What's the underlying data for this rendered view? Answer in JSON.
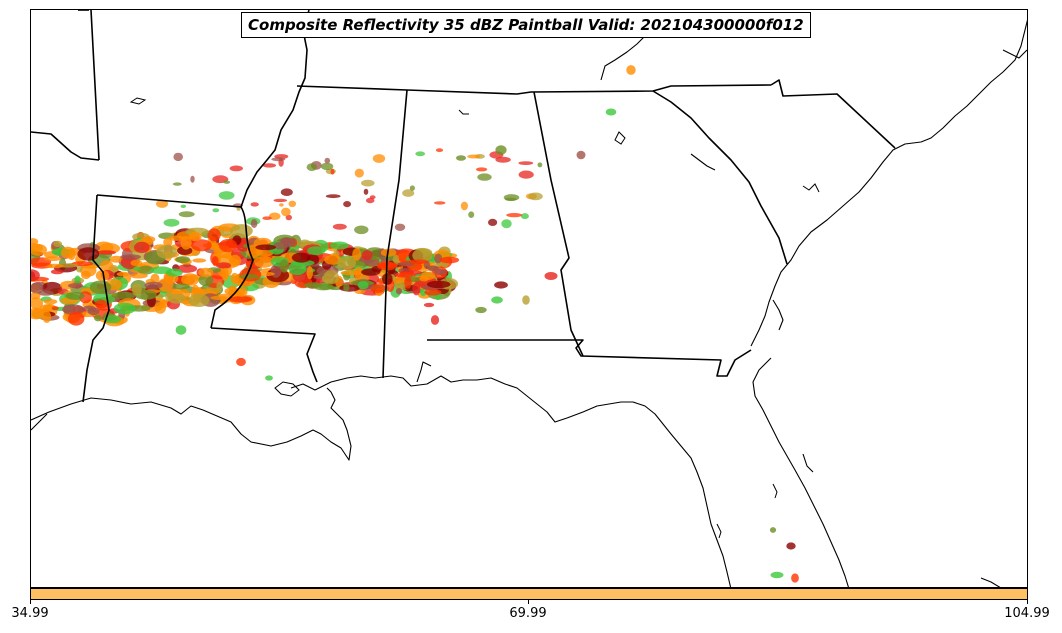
{
  "title": "Composite Reflectivity 35 dBZ Paintball Valid: 202104300000f012",
  "colorbar": {
    "color": "#ffc064",
    "tick_labels": [
      "34.99",
      "69.99",
      "104.99"
    ]
  },
  "map": {
    "region": "Southeastern United States",
    "boundaries": [
      "state-borders",
      "coastlines"
    ],
    "paintball_colors": [
      "#ff8c00",
      "#ff3300",
      "#e8231e",
      "#8b0000",
      "#6b8e23",
      "#3cc83c",
      "#b8a030",
      "#a0524a"
    ]
  }
}
